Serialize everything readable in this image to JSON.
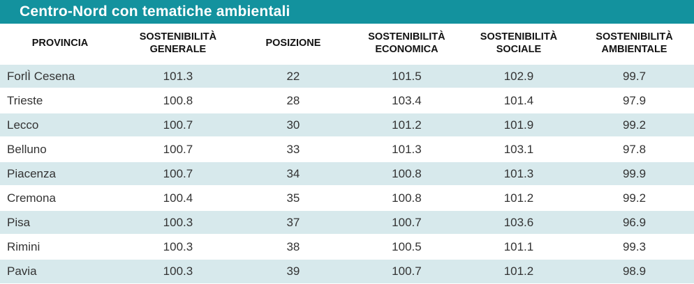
{
  "title": "Centro-Nord con tematiche ambientali",
  "colors": {
    "title_bar_teal": "#13929E",
    "title_text": "#FFFFFF",
    "row_alternate_blue": "#D7E9EC",
    "row_white": "#FFFFFF",
    "header_text": "#121212",
    "cell_text": "#333333"
  },
  "chart_data": {
    "type": "table",
    "title": "Centro-Nord con tematiche ambientali",
    "columns": [
      "PROVINCIA",
      "SOSTENIBILITÀ GENERALE",
      "POSIZIONE",
      "SOSTENIBILITÀ ECONOMICA",
      "SOSTENIBILITÀ SOCIALE",
      "SOSTENIBILITÀ AMBIENTALE"
    ],
    "rows": [
      [
        "ForlÌ Cesena",
        "101.3",
        "22",
        "101.5",
        "102.9",
        "99.7"
      ],
      [
        "Trieste",
        "100.8",
        "28",
        "103.4",
        "101.4",
        "97.9"
      ],
      [
        "Lecco",
        "100.7",
        "30",
        "101.2",
        "101.9",
        "99.2"
      ],
      [
        "Belluno",
        "100.7",
        "33",
        "101.3",
        "103.1",
        "97.8"
      ],
      [
        "Piacenza",
        "100.7",
        "34",
        "100.8",
        "101.3",
        "99.9"
      ],
      [
        "Cremona",
        "100.4",
        "35",
        "100.8",
        "101.2",
        "99.2"
      ],
      [
        "Pisa",
        "100.3",
        "37",
        "100.7",
        "103.6",
        "96.9"
      ],
      [
        "Rimini",
        "100.3",
        "38",
        "100.5",
        "101.1",
        "99.3"
      ],
      [
        "Pavia",
        "100.3",
        "39",
        "100.7",
        "101.2",
        "98.9"
      ]
    ],
    "layout": {
      "striped": true,
      "first_row_shade": "blue",
      "column_alignment": [
        "left",
        "center",
        "center",
        "center",
        "center",
        "center"
      ]
    }
  }
}
